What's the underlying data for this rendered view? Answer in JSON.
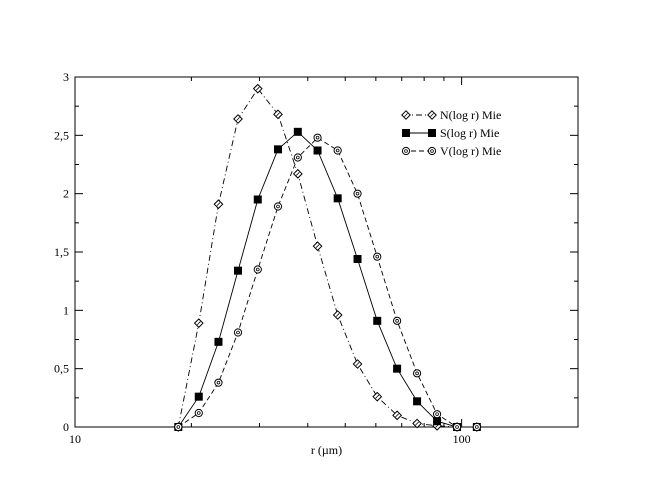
{
  "chart_data": {
    "type": "line",
    "xlabel": "r (µm)",
    "ylabel": "",
    "x_scale": "log",
    "xlim": [
      10,
      200
    ],
    "ylim": [
      0,
      3
    ],
    "x_ticks": [
      {
        "value": 10,
        "label": "10"
      },
      {
        "value": 100,
        "label": "100"
      }
    ],
    "y_ticks": [
      {
        "value": 0,
        "label": "0"
      },
      {
        "value": 0.5,
        "label": "0,5"
      },
      {
        "value": 1,
        "label": "1"
      },
      {
        "value": 1.5,
        "label": "1,5"
      },
      {
        "value": 2,
        "label": "2"
      },
      {
        "value": 2.5,
        "label": "2,5"
      },
      {
        "value": 3,
        "label": "3"
      }
    ],
    "legend_position": "top-right",
    "grid": false,
    "series": [
      {
        "name": "N(log r) Mie",
        "line_style": "dash-dot",
        "marker": "diamond-open",
        "x": [
          18.5,
          20.9,
          23.5,
          26.4,
          29.7,
          33.5,
          37.7,
          42.4,
          47.8,
          53.8,
          60.5,
          68.1,
          76.7,
          86.4,
          97.3,
          109.5
        ],
        "y": [
          0.0,
          0.89,
          1.91,
          2.64,
          2.9,
          2.68,
          2.17,
          1.55,
          0.96,
          0.54,
          0.26,
          0.1,
          0.03,
          0.01,
          0.0,
          0.0
        ]
      },
      {
        "name": "S(log r) Mie",
        "line_style": "solid",
        "marker": "square-filled",
        "x": [
          18.5,
          20.9,
          23.5,
          26.4,
          29.7,
          33.5,
          37.7,
          42.4,
          47.8,
          53.8,
          60.5,
          68.1,
          76.7,
          86.4,
          97.3,
          109.5
        ],
        "y": [
          0.0,
          0.26,
          0.73,
          1.34,
          1.95,
          2.38,
          2.53,
          2.37,
          1.96,
          1.44,
          0.91,
          0.5,
          0.22,
          0.05,
          0.0,
          0.0
        ]
      },
      {
        "name": "V(log r) Mie",
        "line_style": "dashed",
        "marker": "circle-open",
        "x": [
          18.5,
          20.9,
          23.5,
          26.4,
          29.7,
          33.5,
          37.7,
          42.4,
          47.8,
          53.8,
          60.5,
          68.1,
          76.7,
          86.4,
          97.3,
          109.5
        ],
        "y": [
          0.0,
          0.12,
          0.38,
          0.81,
          1.35,
          1.89,
          2.31,
          2.48,
          2.37,
          2.0,
          1.46,
          0.91,
          0.46,
          0.11,
          0.0,
          0.0
        ]
      }
    ]
  }
}
